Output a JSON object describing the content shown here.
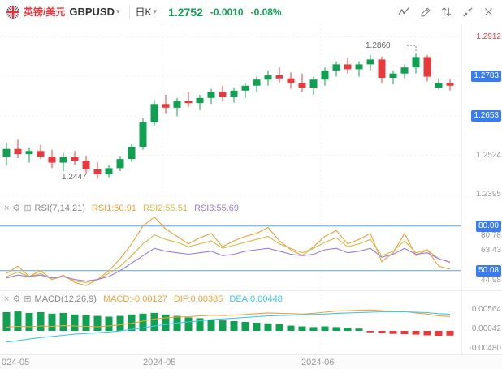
{
  "colors": {
    "up": "#10a052",
    "down": "#e83a3d",
    "badge_blue": "#3a7bf0",
    "rsi1": "#f0a13a",
    "rsi2": "#d9b944",
    "rsi3": "#9b7be0",
    "macd": "#f0a13a",
    "dif": "#f0a13a",
    "dea": "#3cc8e8",
    "hline_blue": "#55a5f0",
    "axis_text": "#999999"
  },
  "header": {
    "pair_name": "英镑/美元",
    "symbol": "GBPUSD",
    "timeframe": "日K",
    "price": "1.2752",
    "change": "-0.0010",
    "change_pct": "-0.08%"
  },
  "main_chart": {
    "y_ticks": [
      {
        "label": "1.2912",
        "value": 1.2912,
        "type": "high"
      },
      {
        "label": "1.2783",
        "value": 1.2783,
        "type": "badge"
      },
      {
        "label": "1.2653",
        "value": 1.2653,
        "type": "badge"
      },
      {
        "label": "1.2524",
        "value": 1.2524,
        "type": "plain"
      },
      {
        "label": "1.2395",
        "value": 1.2395,
        "type": "plain"
      }
    ],
    "high_annotation": "1.2860",
    "low_annotation": "1.2447"
  },
  "rsi_panel": {
    "title": "RSI(7,14,21)",
    "labels": [
      {
        "text": "RSI1:50.91",
        "color": "rsi1"
      },
      {
        "text": "RSI2:55.51",
        "color": "rsi2"
      },
      {
        "text": "RSI3:55.69",
        "color": "rsi3"
      }
    ],
    "y_ticks": [
      {
        "label": "80.00",
        "type": "badge"
      },
      {
        "label": "80.78",
        "type": "plain"
      },
      {
        "label": "63.43",
        "type": "plain"
      },
      {
        "label": "50.08",
        "type": "badge"
      },
      {
        "label": "44.98",
        "type": "plain"
      }
    ]
  },
  "macd_panel": {
    "title": "MACD(12,26,9)",
    "labels": [
      {
        "text": "MACD:-0.00127",
        "color": "macd"
      },
      {
        "text": "DIF:0.00385",
        "color": "dif"
      },
      {
        "text": "DEA:0.00448",
        "color": "dea"
      }
    ],
    "y_ticks": [
      {
        "label": "0.00564",
        "value": 0.00564
      },
      {
        "label": "0.00042",
        "value": 0.00042
      },
      {
        "label": "-0.00480",
        "value": -0.0048
      }
    ]
  },
  "time_axis": {
    "labels": [
      "024-05",
      "2024-05",
      "2024-06"
    ]
  },
  "chart_data": {
    "type": "candlestick",
    "title": "GBPUSD 日K (daily candles) with RSI(7,14,21) and MACD(12,26,9)",
    "price_axis_ticks": [
      1.2912,
      1.2783,
      1.2653,
      1.2524,
      1.2395
    ],
    "marked_high": 1.286,
    "marked_low": 1.2447,
    "last_price": 1.2752,
    "change": -0.001,
    "change_pct": "-0.08%",
    "x_axis_labels": [
      "2024-05",
      "2024-05",
      "2024-06"
    ],
    "candles_ohlc": [
      [
        1.252,
        1.2565,
        1.249,
        1.2545
      ],
      [
        1.2545,
        1.2575,
        1.2515,
        1.2528
      ],
      [
        1.2528,
        1.255,
        1.25,
        1.2538
      ],
      [
        1.2538,
        1.2558,
        1.2512,
        1.252
      ],
      [
        1.252,
        1.2542,
        1.2482,
        1.25
      ],
      [
        1.25,
        1.2532,
        1.2472,
        1.2518
      ],
      [
        1.2518,
        1.2538,
        1.2492,
        1.2506
      ],
      [
        1.2506,
        1.2522,
        1.2462,
        1.2478
      ],
      [
        1.2478,
        1.2502,
        1.2447,
        1.2462
      ],
      [
        1.2462,
        1.2492,
        1.2452,
        1.2482
      ],
      [
        1.2482,
        1.2522,
        1.2472,
        1.2512
      ],
      [
        1.2512,
        1.2562,
        1.2502,
        1.2552
      ],
      [
        1.2552,
        1.2645,
        1.2542,
        1.2632
      ],
      [
        1.2632,
        1.2705,
        1.2622,
        1.2692
      ],
      [
        1.2692,
        1.2722,
        1.2662,
        1.268
      ],
      [
        1.268,
        1.2712,
        1.2652,
        1.2702
      ],
      [
        1.2702,
        1.2732,
        1.2682,
        1.2695
      ],
      [
        1.2695,
        1.2722,
        1.2672,
        1.2712
      ],
      [
        1.2712,
        1.2742,
        1.2692,
        1.2732
      ],
      [
        1.2732,
        1.2752,
        1.2702,
        1.2716
      ],
      [
        1.2716,
        1.2746,
        1.2696,
        1.2736
      ],
      [
        1.2736,
        1.2762,
        1.2712,
        1.2752
      ],
      [
        1.2752,
        1.2782,
        1.2732,
        1.2772
      ],
      [
        1.2772,
        1.2802,
        1.2752,
        1.2786
      ],
      [
        1.2786,
        1.2812,
        1.2762,
        1.2776
      ],
      [
        1.2776,
        1.2796,
        1.2742,
        1.2762
      ],
      [
        1.2762,
        1.2792,
        1.2732,
        1.2746
      ],
      [
        1.2746,
        1.2782,
        1.2722,
        1.2772
      ],
      [
        1.2772,
        1.2812,
        1.2752,
        1.2802
      ],
      [
        1.2802,
        1.2832,
        1.2782,
        1.2822
      ],
      [
        1.2822,
        1.2842,
        1.2792,
        1.2806
      ],
      [
        1.2806,
        1.2832,
        1.2782,
        1.2822
      ],
      [
        1.2822,
        1.2852,
        1.2802,
        1.2838
      ],
      [
        1.2838,
        1.2848,
        1.2762,
        1.2778
      ],
      [
        1.2778,
        1.2802,
        1.2756,
        1.2792
      ],
      [
        1.2792,
        1.2822,
        1.2776,
        1.2812
      ],
      [
        1.2812,
        1.286,
        1.2792,
        1.2846
      ],
      [
        1.2846,
        1.2852,
        1.2766,
        1.2782
      ],
      [
        1.2746,
        1.2776,
        1.274,
        1.2762
      ],
      [
        1.2762,
        1.2772,
        1.2736,
        1.2752
      ]
    ],
    "indicators": {
      "rsi": {
        "params": [
          7,
          14,
          21
        ],
        "levels": [
          80,
          50
        ],
        "current": {
          "rsi1": 50.91,
          "rsi2": 55.51,
          "rsi3": 55.69
        },
        "rsi1": [
          48,
          53,
          46,
          50,
          44,
          47,
          42,
          40,
          44,
          50,
          58,
          68,
          80,
          86,
          78,
          73,
          68,
          72,
          75,
          66,
          70,
          73,
          75,
          79,
          70,
          64,
          60,
          66,
          73,
          77,
          68,
          71,
          75,
          56,
          62,
          75,
          60,
          64,
          53,
          50.91
        ],
        "rsi2": [
          46,
          49,
          46,
          48,
          44,
          46,
          43,
          42,
          44,
          48,
          53,
          60,
          68,
          74,
          71,
          69,
          66,
          68,
          70,
          65,
          67,
          69,
          71,
          73,
          68,
          65,
          62,
          65,
          69,
          72,
          66,
          68,
          71,
          60,
          63,
          70,
          62,
          64,
          58,
          55.51
        ],
        "rsi3": [
          45,
          47,
          46,
          47,
          45,
          46,
          44,
          43,
          44,
          46,
          50,
          55,
          60,
          65,
          63,
          62,
          61,
          62,
          63,
          60,
          61,
          63,
          64,
          65,
          63,
          61,
          60,
          61,
          64,
          65,
          62,
          63,
          65,
          59,
          61,
          65,
          61,
          62,
          58,
          55.69
        ]
      },
      "macd": {
        "params": [
          12,
          26,
          9
        ],
        "current": {
          "macd": -0.00127,
          "dif": 0.00385,
          "dea": 0.00448
        },
        "histogram": [
          0.005,
          0.0052,
          0.0048,
          0.005,
          0.0046,
          0.0048,
          0.0044,
          0.0042,
          0.004,
          0.0038,
          0.004,
          0.0044,
          0.0046,
          0.0048,
          0.0044,
          0.004,
          0.0036,
          0.0034,
          0.003,
          0.0028,
          0.0026,
          0.0024,
          0.0022,
          0.002,
          0.0018,
          0.0014,
          0.0012,
          0.001,
          0.0012,
          0.001,
          0.0008,
          0.0006,
          -0.0004,
          -0.0006,
          -0.0008,
          -0.0009,
          -0.001,
          -0.0012,
          -0.0013,
          -0.00127
        ],
        "dif": [
          0.001,
          0.0012,
          0.0011,
          0.0013,
          0.0012,
          0.0014,
          0.0013,
          0.0012,
          0.0011,
          0.0013,
          0.0016,
          0.002,
          0.0026,
          0.0032,
          0.0035,
          0.0037,
          0.0038,
          0.004,
          0.0042,
          0.0041,
          0.0042,
          0.0044,
          0.0046,
          0.0048,
          0.0047,
          0.0046,
          0.0045,
          0.0047,
          0.005,
          0.0053,
          0.0054,
          0.0055,
          0.0056,
          0.0054,
          0.0051,
          0.0052,
          0.0048,
          0.0045,
          0.004,
          0.00385
        ],
        "dea": [
          -0.003,
          -0.0026,
          -0.0022,
          -0.0018,
          -0.0015,
          -0.0012,
          -0.0009,
          -0.0007,
          -0.0005,
          -0.0003,
          0.0,
          0.0004,
          0.0008,
          0.0013,
          0.0017,
          0.0021,
          0.0024,
          0.0027,
          0.003,
          0.0032,
          0.0034,
          0.0036,
          0.0038,
          0.004,
          0.0041,
          0.0042,
          0.0043,
          0.0044,
          0.0045,
          0.0047,
          0.0048,
          0.0049,
          0.005,
          0.0051,
          0.0051,
          0.0051,
          0.005,
          0.0049,
          0.0046,
          0.00448
        ]
      }
    }
  }
}
